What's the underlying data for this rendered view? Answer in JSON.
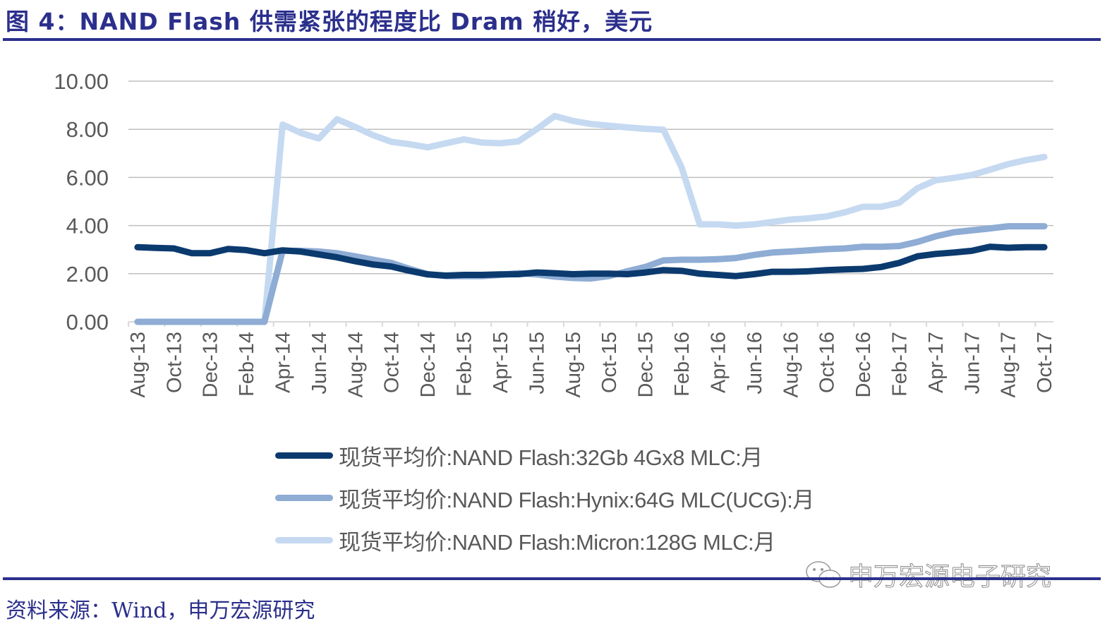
{
  "header": {
    "title": "图 4：NAND Flash 供需紧张的程度比 Dram 稍好，美元"
  },
  "footer": {
    "source": "资料来源：Wind，申万宏源研究",
    "watermark": "申万宏源电子研究",
    "watermark_icon": "wechat-icon"
  },
  "colors": {
    "brand": "#2b2f8c",
    "grid": "#bfbfbf",
    "axis_text": "#595959"
  },
  "chart_data": {
    "type": "line",
    "title": "NAND Flash 供需紧张的程度比 Dram 稍好，美元",
    "xlabel": "",
    "ylabel": "",
    "ylim": [
      0,
      10
    ],
    "yticks": [
      "0.00",
      "2.00",
      "4.00",
      "6.00",
      "8.00",
      "10.00"
    ],
    "grid": true,
    "legend_position": "bottom",
    "x": [
      "Aug-13",
      "Sep-13",
      "Oct-13",
      "Nov-13",
      "Dec-13",
      "Jan-14",
      "Feb-14",
      "Mar-14",
      "Apr-14",
      "May-14",
      "Jun-14",
      "Jul-14",
      "Aug-14",
      "Sep-14",
      "Oct-14",
      "Nov-14",
      "Dec-14",
      "Jan-15",
      "Feb-15",
      "Mar-15",
      "Apr-15",
      "May-15",
      "Jun-15",
      "Jul-15",
      "Aug-15",
      "Sep-15",
      "Oct-15",
      "Nov-15",
      "Dec-15",
      "Jan-16",
      "Feb-16",
      "Mar-16",
      "Apr-16",
      "May-16",
      "Jun-16",
      "Jul-16",
      "Aug-16",
      "Sep-16",
      "Oct-16",
      "Nov-16",
      "Dec-16",
      "Jan-17",
      "Feb-17",
      "Mar-17",
      "Apr-17",
      "May-17",
      "Jun-17",
      "Jul-17",
      "Aug-17",
      "Sep-17",
      "Oct-17"
    ],
    "xtick_labels": [
      "Aug-13",
      "Oct-13",
      "Dec-13",
      "Feb-14",
      "Apr-14",
      "Jun-14",
      "Aug-14",
      "Oct-14",
      "Dec-14",
      "Feb-15",
      "Apr-15",
      "Jun-15",
      "Aug-15",
      "Oct-15",
      "Dec-15",
      "Feb-16",
      "Apr-16",
      "Jun-16",
      "Aug-16",
      "Oct-16",
      "Dec-16",
      "Feb-17",
      "Apr-17",
      "Jun-17",
      "Aug-17",
      "Oct-17"
    ],
    "series": [
      {
        "name": "现货平均价:NAND Flash:32Gb 4Gx8 MLC:月",
        "color": "#0b3a6e",
        "values": [
          3.1,
          3.07,
          3.05,
          2.85,
          2.85,
          3.03,
          2.98,
          2.85,
          2.97,
          2.92,
          2.8,
          2.68,
          2.52,
          2.38,
          2.3,
          2.12,
          1.97,
          1.92,
          1.95,
          1.95,
          1.97,
          1.98,
          2.05,
          2.02,
          1.98,
          2.0,
          2.0,
          1.98,
          2.05,
          2.15,
          2.12,
          2.0,
          1.95,
          1.9,
          1.98,
          2.08,
          2.08,
          2.1,
          2.15,
          2.18,
          2.2,
          2.28,
          2.45,
          2.72,
          2.82,
          2.88,
          2.95,
          3.12,
          3.08,
          3.1,
          3.1
        ]
      },
      {
        "name": "现货平均价:NAND Flash:Hynix:64G MLC(UCG):月",
        "color": "#8eacd4",
        "values": [
          0,
          0,
          0,
          0,
          0,
          0,
          0,
          0,
          2.95,
          2.95,
          2.92,
          2.85,
          2.72,
          2.58,
          2.45,
          2.2,
          1.98,
          1.9,
          1.9,
          1.9,
          1.95,
          2.02,
          1.97,
          1.88,
          1.82,
          1.8,
          1.9,
          2.1,
          2.28,
          2.55,
          2.58,
          2.58,
          2.6,
          2.65,
          2.78,
          2.88,
          2.92,
          2.97,
          3.02,
          3.05,
          3.12,
          3.12,
          3.15,
          3.32,
          3.55,
          3.72,
          3.8,
          3.88,
          3.97,
          3.97,
          3.97
        ]
      },
      {
        "name": "现货平均价:NAND Flash:Micron:128G MLC:月",
        "color": "#c5d9f1",
        "values": [
          0,
          0,
          0,
          0,
          0,
          0,
          0,
          0,
          8.2,
          7.85,
          7.62,
          8.42,
          8.1,
          7.75,
          7.48,
          7.38,
          7.25,
          7.42,
          7.58,
          7.45,
          7.42,
          7.5,
          8.0,
          8.55,
          8.35,
          8.22,
          8.15,
          8.08,
          8.02,
          7.98,
          6.42,
          4.05,
          4.05,
          4.0,
          4.05,
          4.15,
          4.25,
          4.3,
          4.38,
          4.55,
          4.78,
          4.78,
          4.95,
          5.55,
          5.88,
          5.98,
          6.1,
          6.32,
          6.55,
          6.72,
          6.85
        ]
      }
    ]
  }
}
